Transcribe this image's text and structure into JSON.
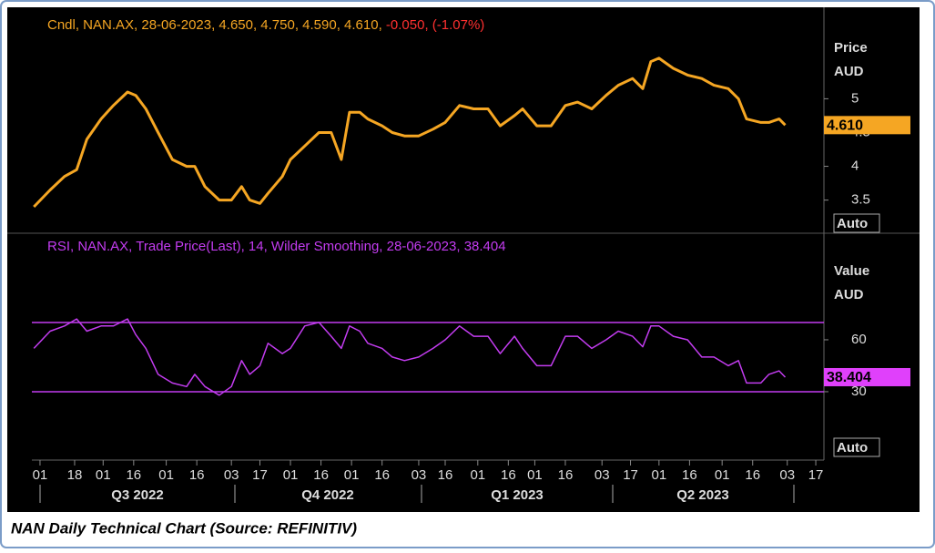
{
  "chart_data": [
    {
      "type": "line",
      "legend": [
        "Cndl, NAN.AX, 28-06-2023, 4.650, 4.750, 4.590, 4.610,",
        "-0.050, (-1.07%)"
      ],
      "y_label": [
        "Price",
        "AUD"
      ],
      "series": [
        {
          "name": "NAN.AX",
          "color": "#f5a623",
          "x": [
            -3,
            5,
            12,
            18,
            23,
            30,
            36,
            43,
            47,
            52,
            58,
            65,
            72,
            76,
            81,
            88,
            94,
            99,
            103,
            108,
            112,
            119,
            123,
            130,
            137,
            143,
            148,
            152,
            157,
            161,
            168,
            173,
            179,
            186,
            193,
            199,
            206,
            213,
            220,
            226,
            233,
            237,
            244,
            251,
            258,
            264,
            271,
            278,
            284,
            291,
            296,
            300,
            304,
            311,
            318,
            325,
            331,
            338,
            343,
            347,
            354,
            358,
            363,
            366
          ],
          "values": [
            3.4,
            3.65,
            3.85,
            3.95,
            4.4,
            4.7,
            4.9,
            5.1,
            5.05,
            4.85,
            4.5,
            4.1,
            4.0,
            4.0,
            3.7,
            3.5,
            3.5,
            3.7,
            3.5,
            3.45,
            3.6,
            3.85,
            4.1,
            4.3,
            4.5,
            4.5,
            4.1,
            4.8,
            4.8,
            4.7,
            4.6,
            4.5,
            4.45,
            4.45,
            4.55,
            4.65,
            4.9,
            4.85,
            4.85,
            4.6,
            4.75,
            4.85,
            4.6,
            4.6,
            4.9,
            4.95,
            4.85,
            5.05,
            5.2,
            5.3,
            5.15,
            5.55,
            5.6,
            5.45,
            5.35,
            5.3,
            5.2,
            5.15,
            5.0,
            4.7,
            4.65,
            4.65,
            4.7,
            4.61
          ]
        }
      ],
      "last_label": "4.610",
      "ylim": [
        3.05,
        6.3
      ],
      "yticks": [
        3.5,
        4,
        4.5,
        5
      ],
      "button": "Auto"
    },
    {
      "type": "line",
      "legend": [
        "RSI, NAN.AX, Trade Price(Last),  14, Wilder Smoothing, 28-06-2023, 38.404"
      ],
      "y_label": [
        "Value",
        "AUD"
      ],
      "series": [
        {
          "name": "RSI",
          "color": "#c33cf0",
          "x": [
            -3,
            5,
            12,
            18,
            23,
            30,
            36,
            43,
            47,
            52,
            58,
            65,
            72,
            76,
            81,
            88,
            94,
            99,
            103,
            108,
            112,
            119,
            123,
            130,
            137,
            143,
            148,
            152,
            157,
            161,
            168,
            173,
            179,
            186,
            193,
            199,
            206,
            213,
            220,
            226,
            233,
            237,
            244,
            251,
            258,
            264,
            271,
            278,
            284,
            291,
            296,
            300,
            304,
            311,
            318,
            325,
            331,
            338,
            343,
            347,
            354,
            358,
            363,
            366
          ],
          "values": [
            55,
            65,
            68,
            72,
            65,
            68,
            68,
            72,
            63,
            55,
            40,
            35,
            33,
            40,
            33,
            28,
            33,
            48,
            40,
            45,
            58,
            52,
            55,
            68,
            70,
            62,
            55,
            68,
            65,
            58,
            55,
            50,
            48,
            50,
            55,
            60,
            68,
            62,
            62,
            52,
            62,
            55,
            45,
            45,
            62,
            62,
            55,
            60,
            65,
            62,
            56,
            68,
            68,
            62,
            60,
            50,
            50,
            45,
            48,
            35,
            35,
            40,
            42,
            38.404
          ]
        }
      ],
      "levels": [
        70,
        30
      ],
      "last_label": "38.404",
      "ylim": [
        -9.5,
        120.5
      ],
      "yticks": [
        30,
        60
      ],
      "button": "Auto"
    }
  ],
  "x_axis": {
    "xlim": [
      -4,
      385
    ],
    "xticks": [
      {
        "value": 0,
        "label": "01"
      },
      {
        "value": 17,
        "label": "18"
      },
      {
        "value": 31,
        "label": "01"
      },
      {
        "value": 46,
        "label": "16"
      },
      {
        "value": 62,
        "label": "01"
      },
      {
        "value": 77,
        "label": "16"
      },
      {
        "value": 94,
        "label": "03"
      },
      {
        "value": 108,
        "label": "17"
      },
      {
        "value": 123,
        "label": "01"
      },
      {
        "value": 138,
        "label": "16"
      },
      {
        "value": 153,
        "label": "01"
      },
      {
        "value": 168,
        "label": "16"
      },
      {
        "value": 186,
        "label": "03"
      },
      {
        "value": 199,
        "label": "16"
      },
      {
        "value": 215,
        "label": "01"
      },
      {
        "value": 230,
        "label": "16"
      },
      {
        "value": 243,
        "label": "01"
      },
      {
        "value": 258,
        "label": "16"
      },
      {
        "value": 276,
        "label": "03"
      },
      {
        "value": 290,
        "label": "17"
      },
      {
        "value": 304,
        "label": "01"
      },
      {
        "value": 319,
        "label": "16"
      },
      {
        "value": 335,
        "label": "01"
      },
      {
        "value": 350,
        "label": "16"
      },
      {
        "value": 367,
        "label": "03"
      },
      {
        "value": 381,
        "label": "17"
      }
    ],
    "quarters": [
      "Q3 2022",
      "Q4 2022",
      "Q1 2023",
      "Q2 2023"
    ]
  },
  "caption": "NAN Daily Technical Chart (Source: REFINITIV)"
}
